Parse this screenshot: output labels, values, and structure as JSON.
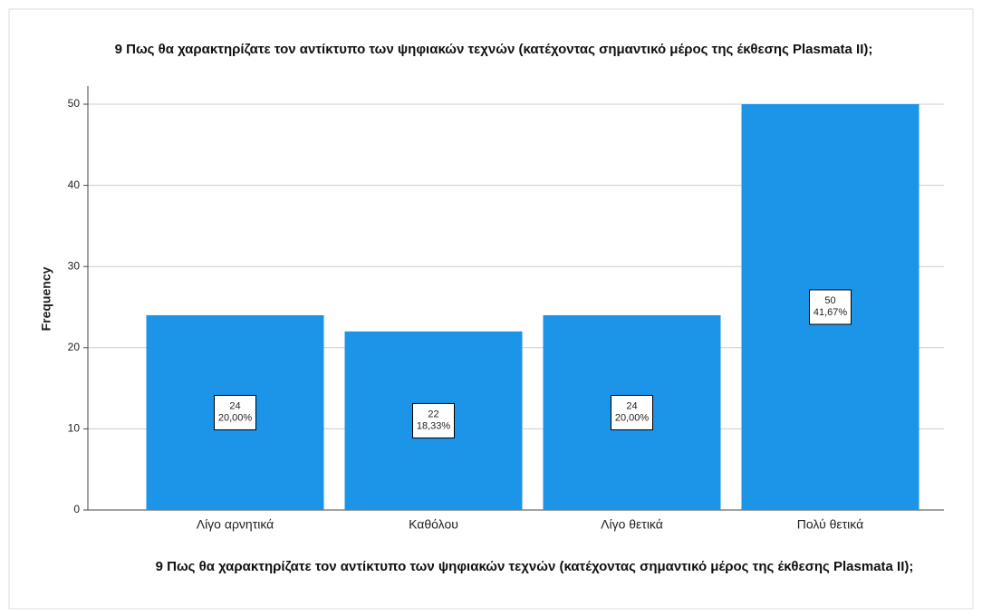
{
  "chart_data": {
    "type": "bar",
    "title": "9 Πως θα χαρακτηρίζατε τον αντίκτυπο των ψηφιακών τεχνών (κατέχοντας σημαντικό μέρος της έκθεσης Plasmata II);",
    "x_label": "9 Πως θα χαρακτηρίζατε τον αντίκτυπο των ψηφιακών τεχνών (κατέχοντας σημαντικό μέρος της έκθεσης Plasmata II);",
    "y_label": "Frequency",
    "categories": [
      "Λίγο αρνητικά",
      "Καθόλου",
      "Λίγο θετικά",
      "Πολύ θετικά"
    ],
    "values": [
      24,
      22,
      24,
      50
    ],
    "percent_labels": [
      "20,00%",
      "18,33%",
      "20,00%",
      "41,67%"
    ],
    "color": "#1c94e8",
    "ylim": [
      0,
      50
    ],
    "yticks": [
      0,
      10,
      20,
      30,
      40,
      50
    ],
    "grid": true
  }
}
